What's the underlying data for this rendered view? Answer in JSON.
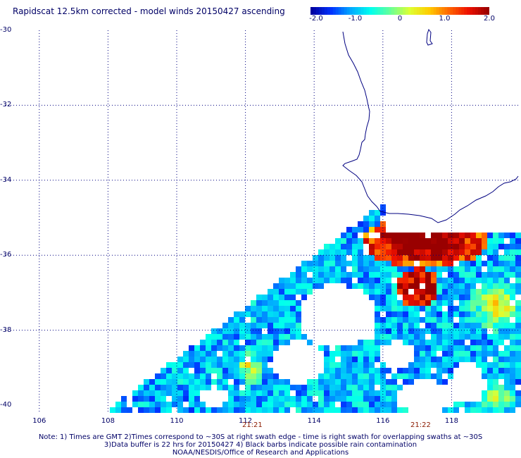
{
  "title": "Rapidscat 12.5km corrected - model winds 20150427 ascending",
  "colorbar": {
    "min": -2.0,
    "max": 2.0,
    "tick_labels": [
      "-2.0",
      "-1.0",
      "0",
      "1.0",
      "2.0"
    ],
    "tick_values": [
      -2.0,
      -1.0,
      0,
      1.0,
      2.0
    ],
    "colors": [
      "#0000a0",
      "#0033ff",
      "#00aaff",
      "#00ffee",
      "#66ff99",
      "#ddff33",
      "#ffcc00",
      "#ff6600",
      "#ee1100",
      "#990000"
    ]
  },
  "map": {
    "lat_range": [
      -40,
      -30
    ],
    "lon_range": [
      105,
      120
    ],
    "lat_labels": [
      "-30",
      "-32",
      "-34",
      "-36",
      "-38",
      "-40"
    ],
    "lat_values": [
      -30,
      -32,
      -34,
      -36,
      -38,
      -40
    ],
    "lon_labels": [
      "106",
      "108",
      "110",
      "112",
      "114",
      "116",
      "118"
    ],
    "lon_values": [
      106,
      108,
      110,
      112,
      114,
      116,
      118
    ],
    "coast_color": "#000080",
    "grid_color": "#000080",
    "time_labels": [
      {
        "text": "21:21",
        "lon": 112.2
      },
      {
        "text": "21:22",
        "lon": 117.1
      }
    ]
  },
  "notes": [
    "Note: 1) Times are GMT 2)Times correspond to ~30S at right swath edge - time is right swath for overlapping swaths at ~30S",
    "3)Data buffer is 22 hrs for 20150427 4) Black barbs indicate possible rain contamination",
    "NOAA/NESDIS/Office of Research and Applications"
  ]
}
